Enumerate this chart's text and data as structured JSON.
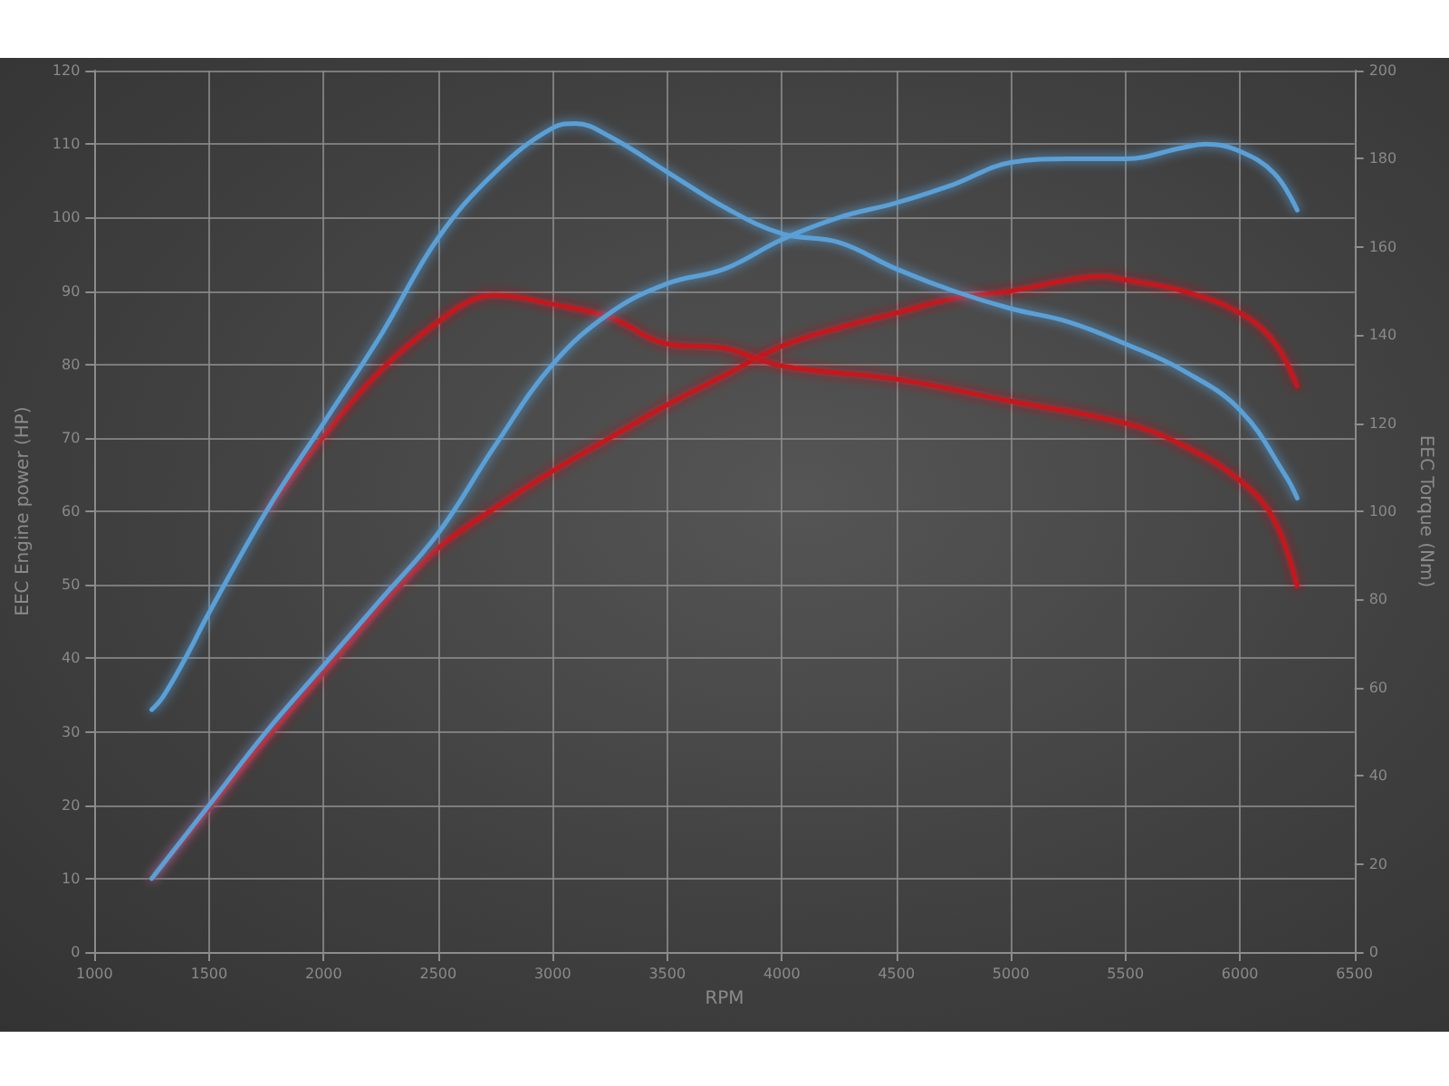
{
  "chart_data": {
    "type": "line",
    "xlabel": "RPM",
    "ylabel": "EEC Engine power (HP)",
    "y2label": "EEC Torque (Nm)",
    "xlim": [
      1000,
      6500
    ],
    "xticks": [
      1000,
      1500,
      2000,
      2500,
      3000,
      3500,
      4000,
      4500,
      5000,
      5500,
      6000,
      6500
    ],
    "ylim": [
      0,
      120
    ],
    "yticks": [
      0,
      10,
      20,
      30,
      40,
      50,
      60,
      70,
      80,
      90,
      100,
      110,
      120
    ],
    "y2lim": [
      0,
      200
    ],
    "y2ticks": [
      0,
      20,
      40,
      60,
      80,
      100,
      120,
      140,
      160,
      180,
      200
    ],
    "grid": true,
    "marker": "none",
    "line_style": "solid",
    "series": [
      {
        "color": "#c8161e",
        "x": [
          1250,
          1500,
          1750,
          2000,
          2250,
          2500,
          2750,
          3000,
          3250,
          3500,
          3750,
          4000,
          4250,
          4500,
          4750,
          5000,
          5250,
          5400,
          5500,
          5750,
          6000,
          6150,
          6250
        ],
        "values": [
          10,
          19.5,
          29,
          38,
          47,
          55,
          60.5,
          65.5,
          70,
          74.5,
          78.5,
          82.5,
          85,
          87,
          89,
          90,
          91.5,
          92,
          91.5,
          90,
          87,
          83,
          77
        ]
      },
      {
        "color": "#c8161e",
        "axis": "y2",
        "x": [
          1750,
          2000,
          2250,
          2500,
          2650,
          2750,
          3000,
          3250,
          3500,
          3750,
          4000,
          4500,
          5000,
          5500,
          5750,
          6000,
          6150,
          6250
        ],
        "values": [
          100,
          117,
          132,
          143,
          148,
          149,
          147,
          144,
          138,
          137,
          133,
          130,
          125,
          120,
          115,
          107,
          98,
          83
        ]
      },
      {
        "color": "#5aa0d8",
        "x": [
          1250,
          1500,
          1750,
          2000,
          2250,
          2500,
          2750,
          3000,
          3250,
          3500,
          3750,
          4000,
          4250,
          4500,
          4750,
          5000,
          5250,
          5500,
          5750,
          5850,
          6000,
          6150,
          6250
        ],
        "values": [
          10,
          20,
          30,
          39,
          48,
          57,
          69,
          80,
          87,
          91,
          93,
          97,
          100,
          102,
          104.5,
          107.5,
          108,
          108,
          109.5,
          110,
          109,
          106,
          101
        ]
      },
      {
        "color": "#5aa0d8",
        "axis": "y2",
        "x": [
          1250,
          1300,
          1400,
          1500,
          1750,
          2000,
          2250,
          2500,
          2750,
          3000,
          3100,
          3250,
          3500,
          3750,
          4000,
          4250,
          4500,
          4750,
          5000,
          5250,
          5500,
          5750,
          6000,
          6200,
          6250
        ],
        "values": [
          55,
          58,
          67,
          77,
          100,
          120,
          140,
          162,
          177,
          187,
          188,
          185,
          177,
          169,
          163,
          161,
          155,
          150,
          146,
          143,
          138,
          132,
          123,
          108,
          103
        ]
      }
    ]
  }
}
